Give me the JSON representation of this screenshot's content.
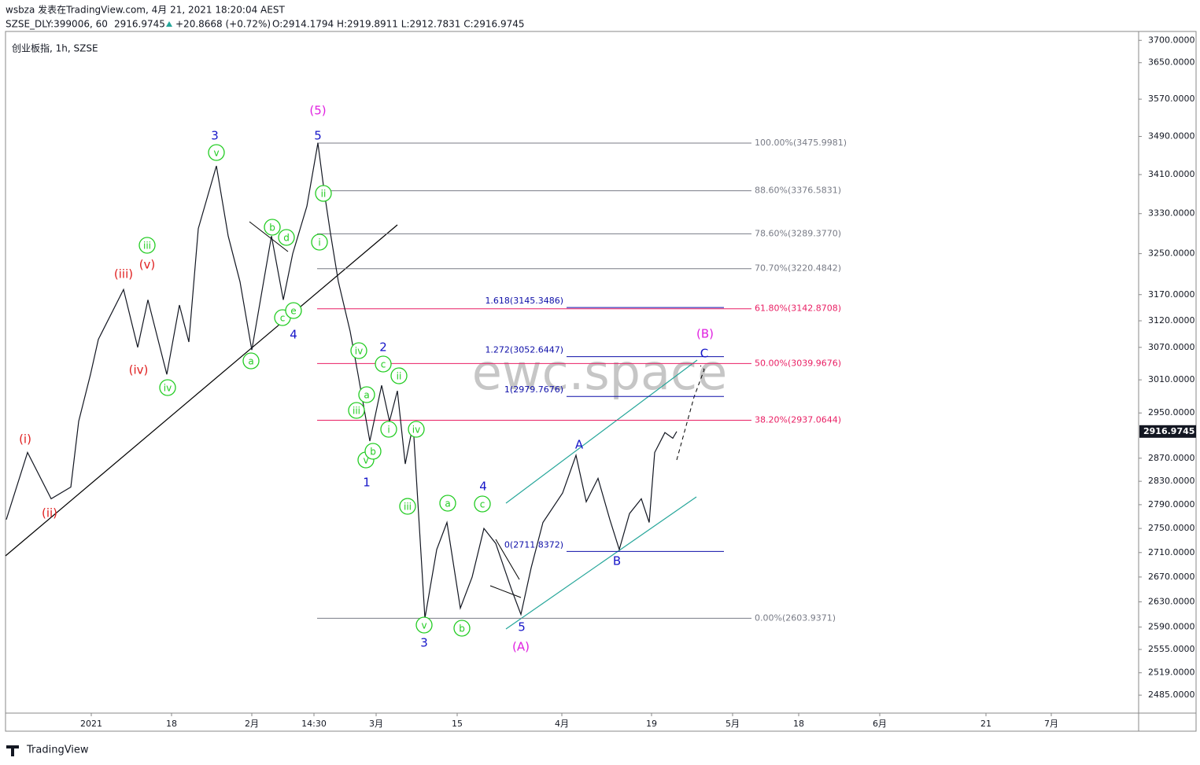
{
  "header": {
    "line1": "wsbza 发表在TradingView.com, 4月 21, 2021 18:20:04 AEST",
    "symbol": "SZSE_DLY:399006, 60",
    "price": "2916.9745",
    "change": "+20.8668 (+0.72%)",
    "ohlc": "O:2914.1794 H:2919.8911 L:2912.7831 C:2916.9745"
  },
  "legend_title": "创业板指, 1h, SZSE",
  "watermark": "ewc.space",
  "footer": "TradingView",
  "chart_data": {
    "type": "line",
    "color": "#131722",
    "x": [
      0.25,
      7,
      14.5,
      20.75,
      23.25,
      27,
      29.5,
      37.5,
      42,
      45.25,
      51.25,
      55.25,
      58.25,
      61.25,
      67,
      70.75,
      74.5,
      78.25,
      84.5,
      88.25,
      91.25,
      95.75,
      99.25,
      101.25,
      103.25,
      105.75,
      109.5,
      112,
      115.75,
      119.5,
      122,
      124.5,
      127,
      129.5,
      133.25,
      137,
      140.25,
      144.5,
      148.25,
      152,
      155.75,
      160.75,
      163.75,
      167,
      170.75,
      177,
      181.25,
      184.5,
      188.25,
      192,
      195,
      198.25,
      202,
      204.5,
      206.25,
      209.5,
      212,
      213.25
    ],
    "values": [
      2765,
      2880,
      2800,
      2820,
      2935,
      3020,
      3085,
      3180,
      3070,
      3160,
      3020,
      3150,
      3080,
      3300,
      3428,
      3285,
      3195,
      3065,
      3285,
      3160,
      3250,
      3345,
      3476,
      3375,
      3290,
      3195,
      3100,
      3020,
      2900,
      3000,
      2935,
      2990,
      2860,
      2930,
      2604,
      2715,
      2760,
      2620,
      2670,
      2750,
      2725,
      2650,
      2610,
      2685,
      2760,
      2810,
      2875,
      2795,
      2835,
      2765,
      2715,
      2775,
      2800,
      2760,
      2880,
      2915,
      2905,
      2917
    ],
    "xlim": [
      0,
      360
    ],
    "xticks": [
      {
        "value": 27.25,
        "label": "2021"
      },
      {
        "value": 52.75,
        "label": "18"
      },
      {
        "value": 78.25,
        "label": "2月"
      },
      {
        "value": 98,
        "label": "14:30"
      },
      {
        "value": 117.75,
        "label": "3月"
      },
      {
        "value": 143.5,
        "label": "15"
      },
      {
        "value": 176.75,
        "label": "4月"
      },
      {
        "value": 205.25,
        "label": "19"
      },
      {
        "value": 231,
        "label": "5月"
      },
      {
        "value": 252,
        "label": "18"
      },
      {
        "value": 277.75,
        "label": "6月"
      },
      {
        "value": 311.5,
        "label": "21"
      },
      {
        "value": 332.25,
        "label": "7月"
      }
    ],
    "ylim": [
      2458,
      3720
    ],
    "yscale": "log",
    "yticks": [
      {
        "value": 3700,
        "label": "3700.0000"
      },
      {
        "value": 3650,
        "label": "3650.0000"
      },
      {
        "value": 3570,
        "label": "3570.0000"
      },
      {
        "value": 3490,
        "label": "3490.0000"
      },
      {
        "value": 3410,
        "label": "3410.0000"
      },
      {
        "value": 3330,
        "label": "3330.0000"
      },
      {
        "value": 3250,
        "label": "3250.0000"
      },
      {
        "value": 3170,
        "label": "3170.0000"
      },
      {
        "value": 3120,
        "label": "3120.0000"
      },
      {
        "value": 3070,
        "label": "3070.0000"
      },
      {
        "value": 3010,
        "label": "3010.0000"
      },
      {
        "value": 2950,
        "label": "2950.0000"
      },
      {
        "value": 2870,
        "label": "2870.0000"
      },
      {
        "value": 2830,
        "label": "2830.0000"
      },
      {
        "value": 2790,
        "label": "2790.0000"
      },
      {
        "value": 2750,
        "label": "2750.0000"
      },
      {
        "value": 2710,
        "label": "2710.0000"
      },
      {
        "value": 2670,
        "label": "2670.0000"
      },
      {
        "value": 2630,
        "label": "2630.0000"
      },
      {
        "value": 2590,
        "label": "2590.0000"
      },
      {
        "value": 2555,
        "label": "2555.0000"
      },
      {
        "value": 2519,
        "label": "2519.0000"
      },
      {
        "value": 2485,
        "label": "2485.0000"
      }
    ],
    "last_price": 2916.9745,
    "fib_levels": [
      {
        "value": 3475.9981,
        "label": "100.00%(3475.9981)",
        "color": "#787b86"
      },
      {
        "value": 3376.5831,
        "label": "88.60%(3376.5831)",
        "color": "#787b86"
      },
      {
        "value": 3289.377,
        "label": "78.60%(3289.3770)",
        "color": "#787b86"
      },
      {
        "value": 3220.4842,
        "label": "70.70%(3220.4842)",
        "color": "#787b86"
      },
      {
        "value": 3142.8708,
        "label": "61.80%(3142.8708)",
        "color": "#e91e63"
      },
      {
        "value": 3039.9676,
        "label": "50.00%(3039.9676)",
        "color": "#e91e63"
      },
      {
        "value": 2937.0644,
        "label": "38.20%(2937.0644)",
        "color": "#e91e63"
      },
      {
        "value": 2603.9371,
        "label": "0.00%(2603.9371)",
        "color": "#787b86"
      }
    ],
    "extension_levels": [
      {
        "value": 3145.3486,
        "label": "1.618(3145.3486)",
        "color": "#0d0ea8"
      },
      {
        "value": 3052.6447,
        "label": "1.272(3052.6447)",
        "color": "#0d0ea8"
      },
      {
        "value": 2979.7676,
        "label": "1(2979.7676)",
        "color": "#0d0ea8"
      },
      {
        "value": 2711.8372,
        "label": "0(2711.8372)",
        "color": "#0d0ea8"
      }
    ],
    "wave_labels": [
      {
        "text": "3",
        "color": "#1515c8"
      },
      {
        "text": "5",
        "color": "#1515c8"
      },
      {
        "text": "4",
        "color": "#1515c8"
      },
      {
        "text": "2",
        "color": "#1515c8"
      },
      {
        "text": "1",
        "color": "#1515c8"
      },
      {
        "text": "3",
        "color": "#1515c8"
      },
      {
        "text": "4",
        "color": "#1515c8"
      },
      {
        "text": "5",
        "color": "#1515c8"
      },
      {
        "text": "A",
        "color": "#1515c8"
      },
      {
        "text": "B",
        "color": "#1515c8"
      },
      {
        "text": "C",
        "color": "#1515c8"
      },
      {
        "text": "(5)",
        "color": "#e020e0"
      },
      {
        "text": "(B)",
        "color": "#e020e0"
      },
      {
        "text": "(A)",
        "color": "#e020e0"
      },
      {
        "text": "(i)",
        "color": "#e02020"
      },
      {
        "text": "(ii)",
        "color": "#e02020"
      },
      {
        "text": "(iii)",
        "color": "#e02020"
      },
      {
        "text": "(iv)",
        "color": "#e02020"
      },
      {
        "text": "(v)",
        "color": "#e02020"
      },
      {
        "text": "v",
        "color": "#22cc22"
      },
      {
        "text": "iii",
        "color": "#22cc22"
      },
      {
        "text": "iv",
        "color": "#22cc22"
      },
      {
        "text": "b",
        "color": "#22cc22"
      },
      {
        "text": "d",
        "color": "#22cc22"
      },
      {
        "text": "c",
        "color": "#22cc22"
      },
      {
        "text": "e",
        "color": "#22cc22"
      },
      {
        "text": "a",
        "color": "#22cc22"
      },
      {
        "text": "ii",
        "color": "#22cc22"
      },
      {
        "text": "i",
        "color": "#22cc22"
      },
      {
        "text": "iv",
        "color": "#22cc22"
      },
      {
        "text": "a",
        "color": "#22cc22"
      },
      {
        "text": "iii",
        "color": "#22cc22"
      },
      {
        "text": "v",
        "color": "#22cc22"
      },
      {
        "text": "b",
        "color": "#22cc22"
      },
      {
        "text": "c",
        "color": "#22cc22"
      },
      {
        "text": "ii",
        "color": "#22cc22"
      },
      {
        "text": "i",
        "color": "#22cc22"
      },
      {
        "text": "iv",
        "color": "#22cc22"
      },
      {
        "text": "iii",
        "color": "#22cc22"
      },
      {
        "text": "v",
        "color": "#22cc22"
      },
      {
        "text": "a",
        "color": "#22cc22"
      },
      {
        "text": "c",
        "color": "#22cc22"
      },
      {
        "text": "b",
        "color": "#22cc22"
      }
    ]
  }
}
